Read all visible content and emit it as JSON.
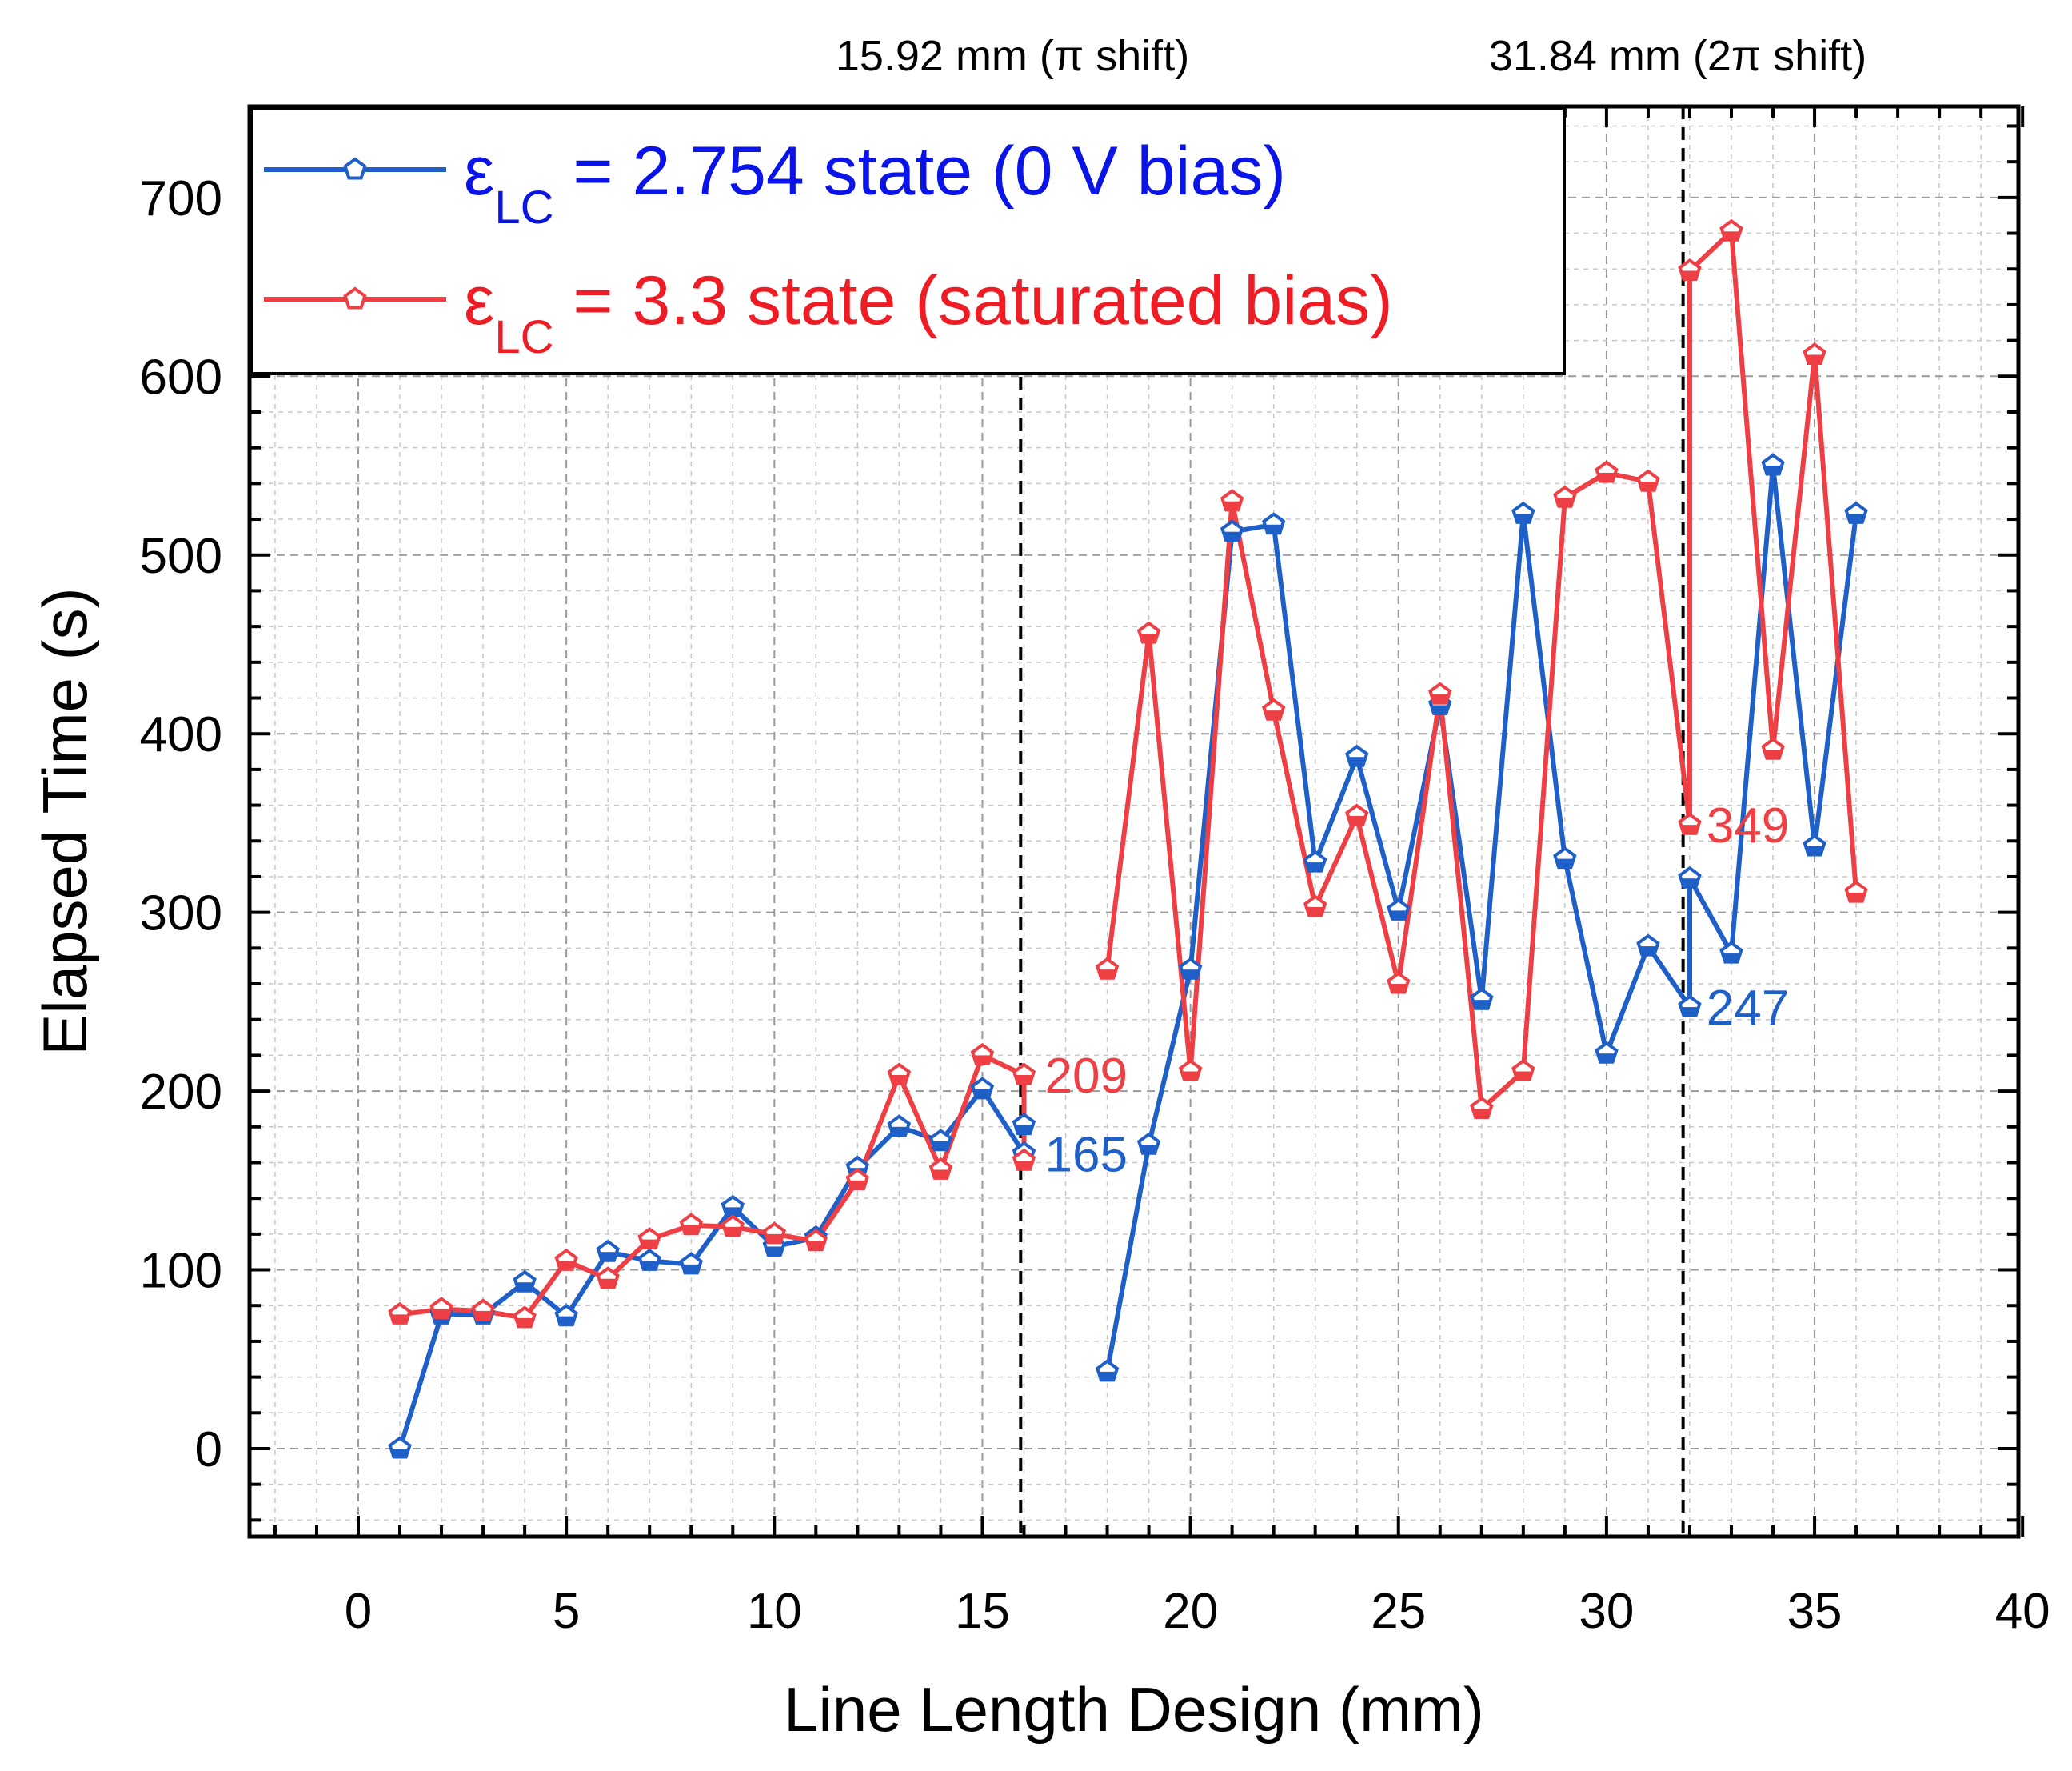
{
  "chart_data": {
    "type": "line",
    "xlabel": "Line Length Design (mm)",
    "ylabel": "Elapsed Time (s)",
    "xlim": [
      -2.5,
      40
    ],
    "ylim": [
      -50,
      750
    ],
    "xticks": [
      0,
      5,
      10,
      15,
      20,
      25,
      30,
      35,
      40
    ],
    "yticks": [
      0,
      100,
      200,
      300,
      400,
      500,
      600,
      700
    ],
    "x_tick_labels": [
      "0",
      "5",
      "10",
      "15",
      "20",
      "25",
      "30",
      "35",
      "40"
    ],
    "y_tick_labels": [
      "0",
      "100",
      "200",
      "300",
      "400",
      "500",
      "600",
      "700"
    ],
    "grid": true,
    "legend_position": "top-left",
    "x": [
      1,
      2,
      3,
      4,
      5,
      6,
      7,
      8,
      9,
      10,
      11,
      12,
      13,
      14,
      15,
      16,
      16,
      17,
      18,
      19,
      20,
      21,
      22,
      23,
      24,
      25,
      26,
      27,
      28,
      29,
      30,
      31,
      32,
      32,
      33,
      34,
      35,
      36
    ],
    "series": [
      {
        "name": "2.754 state (0 V bias)",
        "legend_symbol": "ε",
        "legend_subscript": "LC",
        "legend_prefix": " = ",
        "color": "#1f5fc8",
        "text_color": "#0a14e6",
        "values": [
          0,
          75,
          75,
          93,
          74,
          110,
          105,
          103,
          135,
          113,
          118,
          157,
          180,
          172,
          201,
          165,
          181,
          null,
          43,
          170,
          268,
          513,
          517,
          328,
          387,
          301,
          416,
          251,
          523,
          330,
          221,
          281,
          247,
          319,
          277,
          550,
          337,
          523
        ]
      },
      {
        "name": "3.3 state (saturated bias)",
        "legend_symbol": "ε",
        "legend_subscript": "LC",
        "legend_prefix": " = ",
        "color": "#ee3f45",
        "text_color": "#ee1c24",
        "values": [
          75,
          78,
          77,
          73,
          105,
          95,
          117,
          125,
          124,
          120,
          116,
          150,
          209,
          156,
          220,
          209,
          161,
          null,
          268,
          456,
          211,
          530,
          413,
          303,
          354,
          260,
          422,
          190,
          211,
          532,
          546,
          541,
          349,
          659,
          681,
          391,
          612,
          311
        ]
      }
    ],
    "reference_lines": [
      {
        "x": 15.92,
        "label": "15.92 mm (π shift)"
      },
      {
        "x": 31.84,
        "label": "31.84 mm (2π shift)"
      }
    ],
    "annotations": [
      {
        "text": "209",
        "x": 16.5,
        "y": 209,
        "series": 1
      },
      {
        "text": "165",
        "x": 16.5,
        "y": 165,
        "series": 0
      },
      {
        "text": "349",
        "x": 32.4,
        "y": 349,
        "series": 1
      },
      {
        "text": "247",
        "x": 32.4,
        "y": 247,
        "series": 0
      }
    ]
  }
}
